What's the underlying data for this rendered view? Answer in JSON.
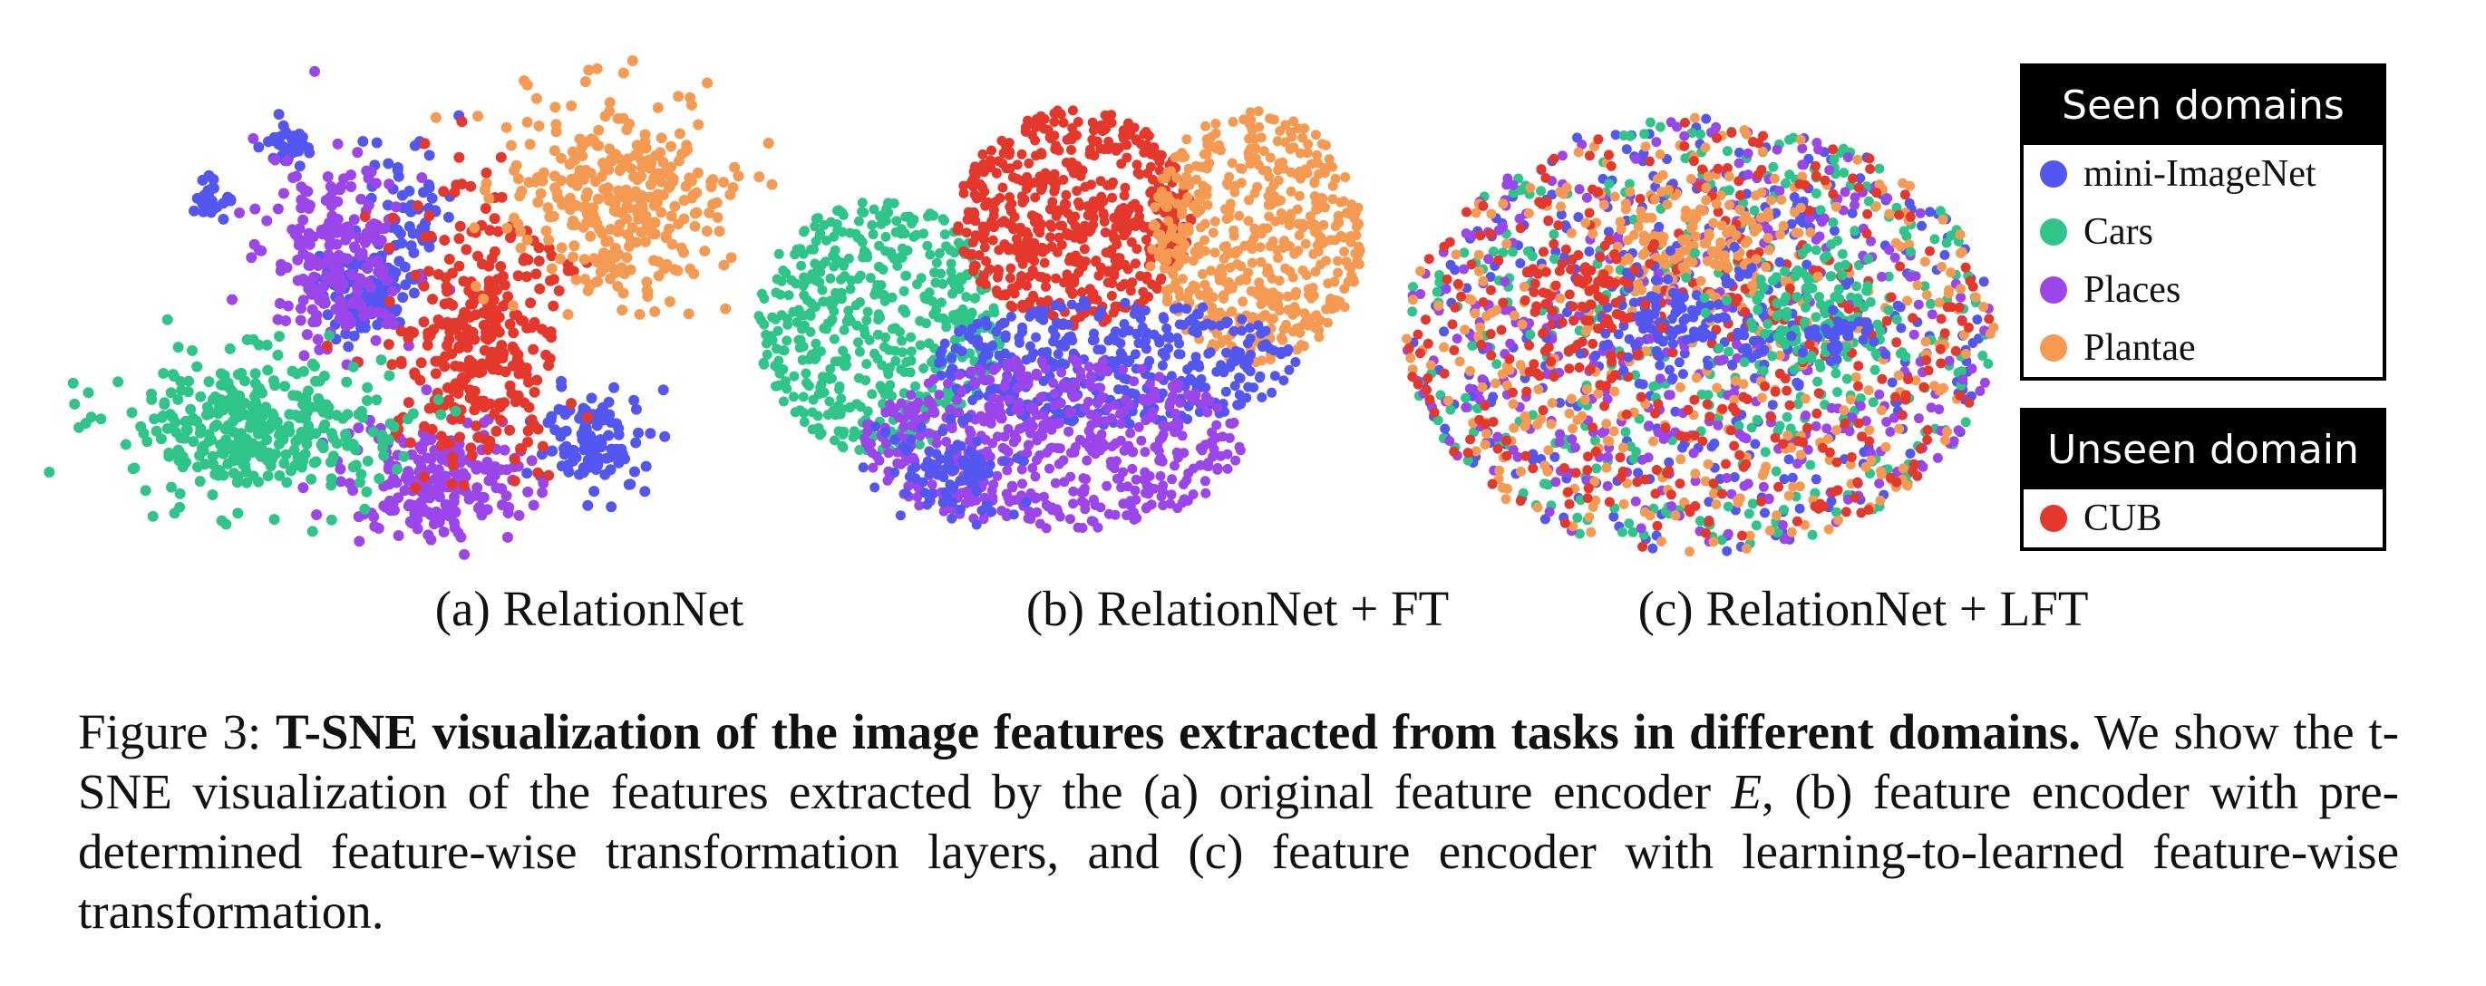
{
  "panels": [
    {
      "id": "a",
      "caption": "(a) RelationNet"
    },
    {
      "id": "b",
      "caption": "(b) RelationNet + FT"
    },
    {
      "id": "c",
      "caption": "(c) RelationNet + LFT"
    }
  ],
  "legend": {
    "seen_header": "Seen domains",
    "seen_items": [
      {
        "label": "mini-ImageNet",
        "color": "#5456f0"
      },
      {
        "label": "Cars",
        "color": "#2ec48a"
      },
      {
        "label": "Places",
        "color": "#9b46ea"
      },
      {
        "label": "Plantae",
        "color": "#f59a52"
      }
    ],
    "unseen_header": "Unseen domain",
    "unseen_items": [
      {
        "label": "CUB",
        "color": "#e5382c"
      }
    ]
  },
  "caption": {
    "prefix": "Figure 3: ",
    "bold": "T-SNE visualization of the image features extracted from tasks in different domains.",
    "body_1": " We show the t-SNE visualization of the features extracted by the (a) original feature encoder ",
    "math_symbol": "E",
    "body_2": ", (b) feature encoder with pre-determined feature-wise transformation layers, and (c) feature encoder with learning-to-learned feature-wise transformation."
  }
}
